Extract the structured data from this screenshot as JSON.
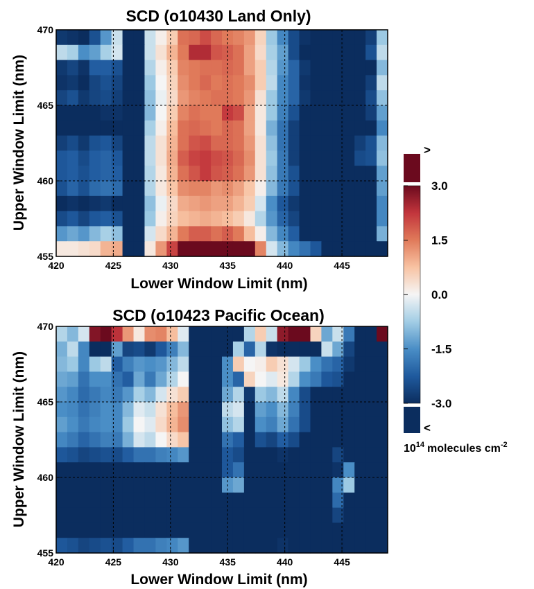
{
  "colors": {
    "colormap": [
      "#0b2d5e",
      "#1f5a9e",
      "#4a8ec6",
      "#a2cde5",
      "#f5f5f5",
      "#f8c3a3",
      "#e07a5a",
      "#c2353c",
      "#6b0a1e"
    ],
    "over": "#6b0a1e",
    "under": "#0b2d5e",
    "gridline": "#000000"
  },
  "colorbar": {
    "ticks": [
      "3.0",
      "1.5",
      "0.0",
      "-1.5",
      "-3.0"
    ],
    "tick_values": [
      3.0,
      1.5,
      0.0,
      -1.5,
      -3.0
    ],
    "over_label": ">",
    "under_label": "<",
    "unit_base": "10",
    "unit_exp": "14",
    "unit_text": "molecules cm",
    "unit_power": "-2",
    "range": [
      -3.0,
      3.0
    ]
  },
  "chart_data": [
    {
      "type": "heatmap",
      "title": "SCD (o10430 Land Only)",
      "xlabel": "Lower Window Limit (nm)",
      "ylabel": "Upper Window Limit (nm)",
      "x_ticks": [
        "420",
        "425",
        "430",
        "435",
        "440",
        "445"
      ],
      "y_ticks": [
        "455",
        "460",
        "465",
        "470"
      ],
      "xlim": [
        420,
        449
      ],
      "ylim": [
        455,
        470
      ],
      "grid": true,
      "rows": [
        [
          -2.8,
          -2.9,
          -3.3,
          -2.4,
          -1.4,
          -0.4,
          -4.0,
          -4.0,
          -0.4,
          0.1,
          0.6,
          1.6,
          1.7,
          2.0,
          1.7,
          1.5,
          1.4,
          1.2,
          0.5,
          -0.8,
          -1.6,
          -2.5,
          -2.9,
          -3.3,
          -3.3,
          -3.6,
          -3.6,
          -3.3,
          -2.7,
          -0.8
        ],
        [
          -0.5,
          -0.7,
          -1.5,
          -1.3,
          -0.7,
          -0.3,
          -4.0,
          -4.0,
          -0.4,
          0.3,
          0.9,
          1.5,
          2.4,
          2.4,
          1.9,
          1.8,
          1.6,
          1.1,
          0.4,
          -0.7,
          -1.3,
          -2.5,
          -3.0,
          -3.6,
          -3.6,
          -3.6,
          -3.6,
          -3.3,
          -2.4,
          -0.5
        ],
        [
          -2.8,
          -2.6,
          -2.9,
          -2.2,
          -2.2,
          -2.4,
          -4.0,
          -4.0,
          -0.6,
          0.1,
          0.6,
          1.4,
          1.5,
          1.6,
          1.6,
          1.7,
          1.6,
          1.1,
          0.6,
          -0.6,
          -1.4,
          -2.1,
          -2.8,
          -3.6,
          -3.6,
          -3.6,
          -3.6,
          -3.3,
          -3.0,
          -1.0
        ],
        [
          -2.9,
          -2.8,
          -3.0,
          -2.6,
          -2.4,
          -2.6,
          -4.0,
          -4.0,
          -0.8,
          0.0,
          0.5,
          1.3,
          1.5,
          1.7,
          1.5,
          1.6,
          1.5,
          1.3,
          0.6,
          -0.5,
          -1.6,
          -2.1,
          -2.9,
          -3.6,
          -3.6,
          -3.6,
          -3.6,
          -3.3,
          -2.7,
          -0.5
        ],
        [
          -2.6,
          -2.4,
          -2.8,
          -2.6,
          -2.5,
          -2.7,
          -4.0,
          -4.0,
          -0.9,
          -0.1,
          0.4,
          1.2,
          1.4,
          1.5,
          1.6,
          1.6,
          1.5,
          1.2,
          0.3,
          -0.8,
          -1.6,
          -2.1,
          -2.8,
          -3.6,
          -3.6,
          -3.6,
          -3.3,
          -3.0,
          -2.5,
          -0.9
        ],
        [
          -3.1,
          -3.0,
          -3.3,
          -3.0,
          -2.9,
          -2.9,
          -4.0,
          -4.0,
          -1.0,
          0.0,
          0.6,
          1.4,
          1.6,
          1.5,
          1.5,
          2.2,
          2.0,
          1.1,
          0.2,
          -0.8,
          -1.7,
          -2.4,
          -3.0,
          -3.6,
          -3.6,
          -3.6,
          -3.6,
          -3.3,
          -2.7,
          -1.3
        ],
        [
          -3.3,
          -3.3,
          -3.5,
          -3.2,
          -3.2,
          -3.3,
          -4.0,
          -4.0,
          -0.7,
          0.1,
          0.8,
          1.6,
          1.7,
          1.6,
          1.5,
          1.7,
          1.6,
          1.1,
          0.2,
          -1.1,
          -1.9,
          -2.7,
          -3.3,
          -3.6,
          -3.6,
          -3.6,
          -3.6,
          -3.6,
          -3.3,
          -1.6
        ],
        [
          -2.7,
          -2.5,
          -2.8,
          -2.4,
          -2.3,
          -2.6,
          -4.0,
          -4.0,
          -0.5,
          0.3,
          0.9,
          1.6,
          1.9,
          2.0,
          1.7,
          1.7,
          1.6,
          1.2,
          0.3,
          -0.9,
          -1.9,
          -2.7,
          -3.3,
          -3.6,
          -3.6,
          -3.6,
          -3.6,
          -2.7,
          -2.4,
          -1.0
        ],
        [
          -2.3,
          -2.2,
          -2.5,
          -2.2,
          -2.1,
          -2.3,
          -4.0,
          -4.0,
          -0.5,
          0.3,
          1.0,
          1.8,
          2.1,
          2.2,
          2.0,
          1.9,
          1.7,
          1.3,
          0.3,
          -0.8,
          -1.8,
          -2.7,
          -3.3,
          -3.6,
          -3.6,
          -3.6,
          -3.6,
          -2.5,
          -2.4,
          -0.9
        ],
        [
          -2.3,
          -2.2,
          -2.4,
          -2.2,
          -2.1,
          -2.2,
          -4.0,
          -4.0,
          -0.6,
          0.2,
          0.9,
          1.6,
          1.9,
          2.2,
          1.9,
          1.8,
          1.6,
          1.2,
          0.3,
          -0.9,
          -1.8,
          -2.4,
          -3.0,
          -3.6,
          -3.6,
          -3.6,
          -3.6,
          -3.6,
          -3.0,
          -1.3
        ],
        [
          -2.4,
          -2.1,
          -2.4,
          -2.0,
          -1.9,
          -2.0,
          -4.0,
          -4.0,
          -0.6,
          0.2,
          0.7,
          1.3,
          1.4,
          1.4,
          1.2,
          1.3,
          1.1,
          0.7,
          0.1,
          -1.0,
          -1.8,
          -2.4,
          -3.0,
          -3.6,
          -3.6,
          -3.6,
          -3.6,
          -3.6,
          -3.0,
          -1.3
        ],
        [
          -3.0,
          -2.9,
          -3.1,
          -2.9,
          -2.8,
          -3.0,
          -4.0,
          -4.0,
          -0.9,
          -0.1,
          0.4,
          1.0,
          1.1,
          1.2,
          1.1,
          1.1,
          0.9,
          0.6,
          -0.3,
          -1.5,
          -2.3,
          -2.8,
          -3.3,
          -3.6,
          -3.6,
          -3.6,
          -3.6,
          -3.6,
          -3.3,
          -1.6
        ],
        [
          -2.5,
          -2.3,
          -2.6,
          -2.3,
          -2.2,
          -2.4,
          -4.0,
          -4.0,
          -0.8,
          0.1,
          0.5,
          0.8,
          0.9,
          1.0,
          0.9,
          0.8,
          0.6,
          0.2,
          -0.6,
          -1.4,
          -2.1,
          -2.6,
          -3.1,
          -3.6,
          -3.6,
          -3.6,
          -3.6,
          -3.6,
          -3.3,
          -1.6
        ],
        [
          -1.4,
          -1.2,
          -1.4,
          -1.0,
          -0.7,
          -0.9,
          -4.0,
          -4.0,
          -0.3,
          0.4,
          0.9,
          1.5,
          1.8,
          1.8,
          1.6,
          1.8,
          1.5,
          0.8,
          0.1,
          -1.0,
          -1.6,
          -2.2,
          -3.0,
          -3.6,
          -3.6,
          -3.6,
          -3.6,
          -3.6,
          -3.0,
          -1.1
        ],
        [
          0.2,
          0.2,
          0.3,
          0.4,
          0.9,
          1.0,
          -4.0,
          -4.0,
          0.2,
          1.2,
          2.1,
          3.4,
          4.0,
          4.0,
          4.0,
          4.0,
          4.0,
          3.4,
          1.4,
          -0.3,
          -1.0,
          -1.6,
          -1.9,
          -2.3,
          -3.6,
          -3.6,
          -3.6,
          -3.6,
          -3.6,
          -3.6
        ]
      ]
    },
    {
      "type": "heatmap",
      "title": "SCD (o10423 Pacific Ocean)",
      "xlabel": "Lower Window Limit (nm)",
      "ylabel": "Upper Window Limit (nm)",
      "x_ticks": [
        "420",
        "425",
        "430",
        "435",
        "440",
        "445"
      ],
      "y_ticks": [
        "455",
        "460",
        "465",
        "470"
      ],
      "xlim": [
        420,
        449
      ],
      "ylim": [
        455,
        470
      ],
      "grid": true,
      "rows": [
        [
          -0.6,
          -1.0,
          -0.3,
          2.8,
          3.8,
          2.3,
          1.2,
          0.2,
          1.3,
          1.4,
          0.8,
          -0.2,
          -4.0,
          -4.0,
          -4.0,
          -4.0,
          -4.0,
          -0.6,
          0.6,
          -0.4,
          2.7,
          4.0,
          3.6,
          0.5,
          -1.2,
          -0.4,
          -1.8,
          -3.0,
          -3.6,
          4.0
        ],
        [
          -1.1,
          -0.5,
          -1.6,
          -4.0,
          -4.0,
          -1.3,
          -2.6,
          -2.5,
          -2.8,
          -2.3,
          -1.7,
          -1.0,
          -4.0,
          -4.0,
          -4.0,
          -4.0,
          -0.7,
          -2.1,
          -0.6,
          -2.9,
          -4.0,
          -3.2,
          -3.8,
          -3.6,
          -0.4,
          -1.2,
          -2.6,
          -3.6,
          -3.6,
          -3.6
        ],
        [
          -1.0,
          -0.8,
          -1.6,
          -0.8,
          -0.5,
          -2.2,
          -1.7,
          -1.4,
          -1.5,
          -1.4,
          -1.0,
          -0.5,
          -4.0,
          -4.0,
          -4.0,
          -1.5,
          0.6,
          0.0,
          0.1,
          0.6,
          0.3,
          -0.3,
          -0.8,
          -1.5,
          -1.9,
          -2.1,
          -2.8,
          -3.6,
          -3.6,
          -3.6
        ],
        [
          -1.2,
          -1.3,
          -1.9,
          -1.5,
          -1.5,
          -1.9,
          -2.2,
          -1.2,
          -1.8,
          -1.2,
          -0.6,
          0.0,
          -4.0,
          -4.0,
          -4.0,
          -1.5,
          -2.1,
          0.5,
          0.0,
          -0.2,
          0.2,
          -0.6,
          -1.5,
          -1.8,
          -2.3,
          -2.4,
          -3.0,
          -3.6,
          -3.6,
          -3.6
        ],
        [
          -1.4,
          -1.6,
          -2.0,
          -1.8,
          -1.6,
          -1.8,
          -1.4,
          -0.7,
          -1.0,
          -0.3,
          0.3,
          0.6,
          -4.0,
          -4.0,
          -4.0,
          -1.2,
          -0.6,
          -2.8,
          -0.8,
          -1.0,
          -0.5,
          -1.6,
          -2.5,
          -3.0,
          -3.3,
          -3.5,
          -3.6,
          -3.6,
          -3.6,
          -3.6
        ],
        [
          -1.5,
          -1.6,
          -1.9,
          -1.7,
          -1.5,
          -1.6,
          -1.0,
          -0.2,
          -0.4,
          0.3,
          0.8,
          1.2,
          -4.0,
          -4.0,
          -4.0,
          -0.5,
          -0.3,
          -3.6,
          -1.3,
          -1.5,
          -1.0,
          -1.7,
          -2.5,
          -3.1,
          -3.3,
          -3.5,
          -3.6,
          -3.6,
          -3.6,
          -3.6
        ],
        [
          -1.3,
          -1.5,
          -1.8,
          -1.6,
          -1.5,
          -1.6,
          -0.8,
          0.0,
          -0.2,
          0.4,
          0.9,
          1.3,
          -4.0,
          -4.0,
          -4.0,
          -0.9,
          -0.6,
          -3.6,
          -1.5,
          -1.7,
          -1.2,
          -1.9,
          -2.5,
          -3.0,
          -3.3,
          -3.5,
          -3.6,
          -3.6,
          -3.6,
          -3.6
        ],
        [
          -1.6,
          -1.8,
          -2.1,
          -1.9,
          -1.7,
          -1.8,
          -1.1,
          -0.3,
          -0.5,
          0.0,
          0.4,
          0.7,
          -4.0,
          -4.0,
          -4.0,
          -1.9,
          -2.2,
          -3.6,
          -2.4,
          -2.6,
          -2.2,
          -2.5,
          -3.0,
          -3.3,
          -3.4,
          -3.6,
          -3.6,
          -3.6,
          -3.6,
          -3.6
        ],
        [
          -2.3,
          -2.4,
          -2.6,
          -2.5,
          -2.4,
          -2.5,
          -2.2,
          -1.9,
          -1.9,
          -1.7,
          -1.6,
          -1.4,
          -4.0,
          -4.0,
          -4.0,
          -2.3,
          -2.5,
          -3.6,
          -3.0,
          -3.1,
          -2.9,
          -3.0,
          -3.3,
          -3.4,
          -3.6,
          -2.6,
          -3.6,
          -3.6,
          -3.6,
          -3.6
        ],
        [
          -3.3,
          -3.3,
          -3.4,
          -3.3,
          -3.3,
          -3.3,
          -3.3,
          -3.3,
          -3.3,
          -3.3,
          -3.3,
          -3.3,
          -4.0,
          -4.0,
          -4.0,
          -2.3,
          -1.9,
          -3.6,
          -3.3,
          -3.3,
          -3.3,
          -3.3,
          -3.6,
          -3.6,
          -3.6,
          -2.9,
          -1.5,
          -3.6,
          -3.6,
          -3.6
        ],
        [
          -3.3,
          -3.3,
          -3.4,
          -3.3,
          -3.3,
          -3.3,
          -3.3,
          -3.3,
          -3.3,
          -3.3,
          -3.3,
          -3.3,
          -4.0,
          -4.0,
          -4.0,
          -1.4,
          -1.2,
          -3.6,
          -3.3,
          -3.3,
          -3.3,
          -3.3,
          -3.6,
          -3.6,
          -3.6,
          -1.6,
          -0.8,
          -3.6,
          -3.6,
          -3.6
        ],
        [
          -3.3,
          -3.3,
          -3.4,
          -3.3,
          -3.3,
          -3.3,
          -3.3,
          -3.3,
          -3.3,
          -3.3,
          -3.3,
          -3.3,
          -4.0,
          -4.0,
          -4.0,
          -3.6,
          -3.6,
          -3.6,
          -3.3,
          -3.3,
          -3.3,
          -3.3,
          -3.6,
          -3.6,
          -3.6,
          -2.0,
          -3.6,
          -3.6,
          -3.6,
          -3.6
        ],
        [
          -3.6,
          -3.6,
          -3.6,
          -3.6,
          -3.6,
          -3.6,
          -3.6,
          -3.6,
          -3.6,
          -3.6,
          -3.6,
          -3.6,
          -4.0,
          -4.0,
          -4.0,
          -3.6,
          -3.6,
          -3.6,
          -3.6,
          -3.6,
          -3.6,
          -3.6,
          -3.6,
          -3.6,
          -3.6,
          -2.6,
          -3.6,
          -3.6,
          -3.6,
          -3.6
        ],
        [
          -3.6,
          -3.6,
          -3.6,
          -3.6,
          -3.6,
          -3.6,
          -3.6,
          -3.6,
          -3.6,
          -3.6,
          -3.6,
          -3.6,
          -4.0,
          -4.0,
          -4.0,
          -3.6,
          -3.6,
          -3.6,
          -3.6,
          -3.6,
          -3.6,
          -3.6,
          -3.6,
          -3.6,
          -3.6,
          -3.6,
          -3.6,
          -3.6,
          -3.6,
          -3.6
        ],
        [
          -2.3,
          -2.4,
          -2.6,
          -2.5,
          -2.4,
          -2.5,
          -2.2,
          -1.9,
          -1.9,
          -1.7,
          -1.6,
          -1.4,
          -4.0,
          -4.0,
          -4.0,
          -3.6,
          -3.6,
          -3.6,
          -3.0,
          -3.1,
          -2.9,
          -3.0,
          -3.3,
          -3.4,
          -3.6,
          -3.6,
          -3.6,
          -3.6,
          -3.6,
          -3.6
        ]
      ]
    }
  ]
}
